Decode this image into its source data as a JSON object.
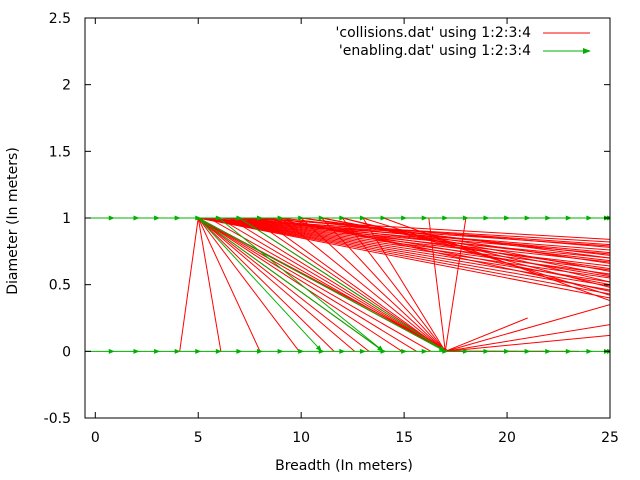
{
  "chart_data": {
    "type": "line",
    "title": "",
    "xlabel": "Breadth (In meters)",
    "ylabel": "Diameter (In meters)",
    "xlim": [
      -0.5,
      25
    ],
    "ylim": [
      -0.5,
      2.5
    ],
    "xticks": [
      0,
      5,
      10,
      15,
      20,
      25
    ],
    "xtick_labels": [
      "0",
      "5",
      "10",
      "15",
      "20",
      "25"
    ],
    "yticks": [
      -0.5,
      0,
      0.5,
      1,
      1.5,
      2,
      2.5
    ],
    "ytick_labels": [
      "-0.5",
      "0",
      "0.5",
      "1",
      "1.5",
      "2",
      "2.5"
    ],
    "grid": false,
    "legend_position": "top-right",
    "series": [
      {
        "name": "'collisions.dat' using 1:2:3:4",
        "color": "#ff0000",
        "style": "vectors-no-head",
        "segments": [
          [
            5,
            1,
            4.1,
            0
          ],
          [
            5,
            1,
            6.1,
            0
          ],
          [
            5,
            1,
            8,
            0
          ],
          [
            5,
            1,
            9.9,
            0
          ],
          [
            5,
            1,
            11.6,
            0
          ],
          [
            5,
            1,
            12.6,
            0
          ],
          [
            5,
            1,
            13.3,
            0
          ],
          [
            5,
            1,
            14,
            0
          ],
          [
            5,
            1,
            14.9,
            0
          ],
          [
            5,
            1,
            15.6,
            0
          ],
          [
            5,
            1,
            16.3,
            0
          ],
          [
            5,
            1,
            17,
            0
          ],
          [
            5,
            1,
            17.2,
            0
          ],
          [
            17,
            0,
            18,
            1
          ],
          [
            17,
            0,
            16.2,
            1
          ],
          [
            17,
            0,
            25,
            0.35
          ],
          [
            17,
            0,
            25,
            0.2
          ],
          [
            17,
            0,
            25,
            0.12
          ],
          [
            17,
            0,
            21,
            0.25
          ],
          [
            17,
            0,
            19.5,
            0
          ],
          [
            17,
            0,
            20.5,
            0
          ],
          [
            17,
            0,
            21.8,
            0
          ],
          [
            17,
            0,
            23.5,
            0
          ],
          [
            5,
            1,
            25,
            0.82
          ],
          [
            5,
            1,
            25,
            0.79
          ],
          [
            5,
            1,
            25,
            0.76
          ],
          [
            5,
            1,
            25,
            0.73
          ],
          [
            5,
            1,
            25,
            0.7
          ],
          [
            5,
            1,
            25,
            0.67
          ],
          [
            5,
            1,
            25,
            0.64
          ],
          [
            5,
            1,
            25,
            0.61
          ],
          [
            5,
            1,
            25,
            0.58
          ],
          [
            5,
            1,
            25,
            0.55
          ],
          [
            5,
            1,
            25,
            0.52
          ],
          [
            5,
            1,
            25,
            0.49
          ],
          [
            5,
            1,
            25,
            0.46
          ],
          [
            5,
            1,
            25,
            0.43
          ],
          [
            5,
            1,
            25,
            0.4
          ],
          [
            6,
            1,
            25,
            0.8
          ],
          [
            6.5,
            1,
            25,
            0.74
          ],
          [
            7,
            1,
            25,
            0.68
          ],
          [
            7.5,
            1,
            25,
            0.62
          ],
          [
            8,
            1,
            25,
            0.56
          ],
          [
            8.5,
            1,
            25,
            0.5
          ],
          [
            9,
            1,
            25,
            0.45
          ],
          [
            10,
            1,
            25,
            0.7
          ],
          [
            11,
            1,
            25,
            0.6
          ],
          [
            12,
            1,
            25,
            0.52
          ],
          [
            7,
            1,
            25,
            0.84
          ],
          [
            8,
            1,
            25,
            0.78
          ],
          [
            9,
            1,
            25,
            0.72
          ],
          [
            10,
            1,
            25,
            0.66
          ],
          [
            11,
            1,
            25,
            0.57
          ],
          [
            12,
            1,
            25,
            0.48
          ],
          [
            13,
            1,
            25,
            0.42
          ],
          [
            14,
            1,
            25,
            0.38
          ],
          [
            5,
            1,
            17,
            0
          ],
          [
            5.5,
            1,
            17,
            0
          ],
          [
            6,
            1,
            17,
            0
          ],
          [
            6.5,
            1,
            17,
            0
          ],
          [
            7,
            1,
            17,
            0
          ],
          [
            7.5,
            1,
            17,
            0
          ],
          [
            8,
            1,
            17,
            0
          ],
          [
            9,
            1,
            17,
            0
          ],
          [
            10,
            1,
            17,
            0
          ],
          [
            11,
            1,
            17,
            0
          ],
          [
            12,
            1,
            17,
            0
          ],
          [
            13,
            1,
            17,
            0
          ]
        ]
      },
      {
        "name": "'enabling.dat' using 1:2:3:4",
        "color": "#00b000",
        "style": "vectors",
        "segments": [
          [
            -0.5,
            1,
            25,
            1
          ],
          [
            -0.5,
            0,
            25,
            0
          ],
          [
            5,
            1,
            11,
            0
          ],
          [
            5,
            1,
            14,
            0
          ],
          [
            5,
            1,
            17,
            0
          ],
          [
            6,
            1,
            14,
            0
          ],
          [
            7,
            1,
            17,
            0
          ]
        ],
        "markers_y1_x": [
          0.8,
          2,
          3,
          4,
          5,
          6,
          7,
          8,
          9,
          10,
          11,
          12,
          13,
          14,
          15,
          16,
          17,
          18,
          19,
          20,
          21,
          22,
          23,
          24,
          25
        ],
        "markers_y0_x": [
          0.8,
          2,
          3,
          4,
          5,
          6,
          7,
          8,
          9,
          10,
          11,
          12,
          13,
          14,
          15,
          16,
          17,
          18,
          19,
          20,
          21,
          22,
          23,
          24,
          25
        ]
      }
    ]
  }
}
